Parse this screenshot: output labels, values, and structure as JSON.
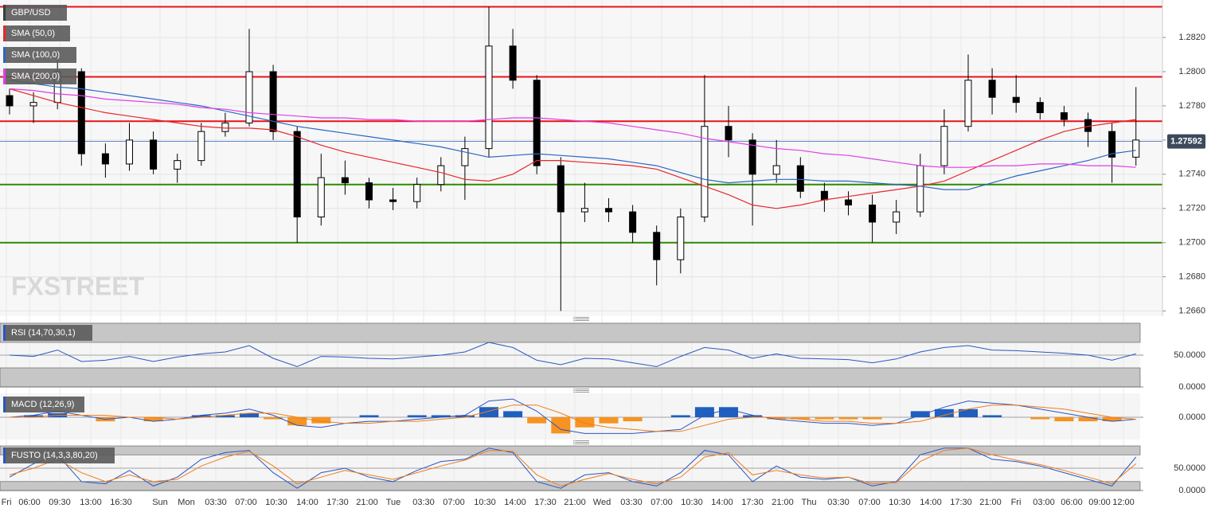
{
  "chart_data": [
    {
      "type": "candlestick",
      "title": "GBP/USD",
      "color": "#3c3c3c",
      "watermark": "FXSTREET",
      "x_labels": [
        "Fri",
        "06:00",
        "09:30",
        "13:00",
        "16:30",
        "Sun",
        "Mon",
        "03:30",
        "07:00",
        "10:30",
        "14:00",
        "17:30",
        "21:00",
        "Tue",
        "03:30",
        "07:00",
        "10:30",
        "14:00",
        "17:30",
        "21:00",
        "Wed",
        "03:30",
        "07:00",
        "10:30",
        "14:00",
        "17:30",
        "21:00",
        "Thu",
        "03:30",
        "07:00",
        "10:30",
        "14:00",
        "17:30",
        "21:00",
        "Fri",
        "03:00",
        "06:00",
        "09:00",
        "12:00"
      ],
      "open": [
        1.2786,
        1.278,
        1.2782,
        1.28,
        1.2752,
        1.2746,
        1.276,
        1.2743,
        1.2748,
        1.2765,
        1.277,
        1.28,
        1.2765,
        1.2715,
        1.2738,
        1.2735,
        1.2725,
        1.2724,
        1.2734,
        1.2745,
        1.2755,
        1.2815,
        1.2795,
        1.2745,
        1.2718,
        1.272,
        1.2718,
        1.2706,
        1.269,
        1.2715,
        1.2768,
        1.276,
        1.274,
        1.2745,
        1.273,
        1.2725,
        1.2722,
        1.2712,
        1.2718,
        1.2745,
        1.2768,
        1.2795,
        1.2785,
        1.2782,
        1.2776,
        1.2772,
        1.2765,
        1.275
      ],
      "high": [
        1.279,
        1.2788,
        1.2808,
        1.2802,
        1.2758,
        1.277,
        1.2765,
        1.2752,
        1.277,
        1.2776,
        1.2825,
        1.2804,
        1.2768,
        1.2752,
        1.2748,
        1.2738,
        1.2732,
        1.2738,
        1.275,
        1.2762,
        1.2838,
        1.2825,
        1.2798,
        1.275,
        1.2735,
        1.2726,
        1.2722,
        1.271,
        1.272,
        1.2798,
        1.278,
        1.2764,
        1.276,
        1.275,
        1.2735,
        1.273,
        1.2728,
        1.2725,
        1.2752,
        1.2778,
        1.281,
        1.2802,
        1.2798,
        1.2785,
        1.278,
        1.2776,
        1.277,
        1.2791
      ],
      "low": [
        1.2775,
        1.277,
        1.2778,
        1.2745,
        1.2738,
        1.2742,
        1.274,
        1.2735,
        1.2745,
        1.2762,
        1.2768,
        1.276,
        1.27,
        1.271,
        1.2728,
        1.272,
        1.2719,
        1.272,
        1.273,
        1.2725,
        1.275,
        1.279,
        1.274,
        1.266,
        1.2712,
        1.2712,
        1.27,
        1.2675,
        1.2682,
        1.2712,
        1.275,
        1.271,
        1.2735,
        1.2726,
        1.2718,
        1.2716,
        1.27,
        1.2705,
        1.2715,
        1.274,
        1.2765,
        1.2775,
        1.2776,
        1.2772,
        1.2768,
        1.2756,
        1.2735,
        1.2745
      ],
      "close": [
        1.278,
        1.2782,
        1.28,
        1.2752,
        1.2746,
        1.276,
        1.2743,
        1.2748,
        1.2765,
        1.277,
        1.28,
        1.2765,
        1.2715,
        1.2738,
        1.2735,
        1.2725,
        1.2724,
        1.2734,
        1.2745,
        1.2755,
        1.2815,
        1.2795,
        1.2745,
        1.2718,
        1.272,
        1.2718,
        1.2706,
        1.269,
        1.2715,
        1.2768,
        1.276,
        1.274,
        1.2745,
        1.273,
        1.2725,
        1.2722,
        1.2712,
        1.2718,
        1.2745,
        1.2768,
        1.2795,
        1.2785,
        1.2782,
        1.2776,
        1.2772,
        1.2765,
        1.275,
        1.276
      ],
      "overlays": [
        {
          "name": "SMA (50,0)",
          "color": "#e8272b",
          "values": [
            1.279,
            1.2786,
            1.2782,
            1.2779,
            1.2776,
            1.2774,
            1.2772,
            1.277,
            1.2768,
            1.2767,
            1.2767,
            1.2766,
            1.2762,
            1.2757,
            1.2753,
            1.275,
            1.2747,
            1.2744,
            1.2741,
            1.2737,
            1.2736,
            1.274,
            1.2748,
            1.2748,
            1.2747,
            1.2746,
            1.2745,
            1.2743,
            1.2738,
            1.2733,
            1.2728,
            1.2722,
            1.272,
            1.2722,
            1.2725,
            1.2727,
            1.2729,
            1.2731,
            1.2733,
            1.2736,
            1.2742,
            1.2748,
            1.2754,
            1.276,
            1.2765,
            1.2768,
            1.277,
            1.2772
          ]
        },
        {
          "name": "SMA (100,0)",
          "color": "#2b67c4",
          "values": [
            1.2795,
            1.2793,
            1.2791,
            1.279,
            1.2788,
            1.2786,
            1.2784,
            1.2782,
            1.278,
            1.2777,
            1.2774,
            1.2771,
            1.2768,
            1.2766,
            1.2764,
            1.2762,
            1.276,
            1.2758,
            1.2756,
            1.2753,
            1.275,
            1.2751,
            1.2752,
            1.2751,
            1.275,
            1.2749,
            1.2747,
            1.2745,
            1.2741,
            1.2737,
            1.2735,
            1.2736,
            1.2737,
            1.2737,
            1.2736,
            1.2736,
            1.2735,
            1.2734,
            1.2733,
            1.2731,
            1.2731,
            1.2735,
            1.2739,
            1.2742,
            1.2745,
            1.2748,
            1.2752,
            1.2754
          ]
        },
        {
          "name": "SMA (200,0)",
          "color": "#e23de8",
          "values": [
            1.279,
            1.2789,
            1.2787,
            1.2786,
            1.2784,
            1.2783,
            1.2782,
            1.2781,
            1.2779,
            1.2778,
            1.2776,
            1.2775,
            1.2774,
            1.2773,
            1.2773,
            1.2772,
            1.2772,
            1.2771,
            1.2771,
            1.2771,
            1.2772,
            1.2773,
            1.2773,
            1.2772,
            1.2771,
            1.277,
            1.2768,
            1.2766,
            1.2764,
            1.2761,
            1.2759,
            1.2757,
            1.2755,
            1.2754,
            1.2752,
            1.2751,
            1.2749,
            1.2747,
            1.2745,
            1.2744,
            1.2744,
            1.2745,
            1.2745,
            1.2746,
            1.2746,
            1.2745,
            1.2745,
            1.2744
          ]
        }
      ],
      "levels": [
        {
          "value": 1.2838,
          "color": "#e8131b"
        },
        {
          "value": 1.2797,
          "color": "#e8131b"
        },
        {
          "value": 1.2771,
          "color": "#e8131b"
        },
        {
          "value": 1.2734,
          "color": "#2e8b00"
        },
        {
          "value": 1.27,
          "color": "#2e8b00"
        }
      ],
      "last_price": 1.27592,
      "ylim": [
        1.2657,
        1.2841
      ],
      "yticks": [
        {
          "value": 1.266,
          "label": "1.2660"
        },
        {
          "value": 1.268,
          "label": "1.2680"
        },
        {
          "value": 1.27,
          "label": "1.2700"
        },
        {
          "value": 1.272,
          "label": "1.2720"
        },
        {
          "value": 1.274,
          "label": "1.2740"
        },
        {
          "value": 1.276,
          "label": "1.2760"
        },
        {
          "value": 1.278,
          "label": "1.2780"
        },
        {
          "value": 1.28,
          "label": "1.2800"
        },
        {
          "value": 1.282,
          "label": "1.2820"
        }
      ],
      "grid": true
    },
    {
      "type": "line",
      "title": "RSI (14,70,30,1)",
      "zones": [
        [
          70,
          100
        ],
        [
          0,
          30
        ]
      ],
      "ylim": [
        0,
        100
      ],
      "yticks": [
        {
          "value": 50,
          "label": "50.0000"
        },
        {
          "value": 0,
          "label": "0.0000"
        }
      ],
      "series": [
        {
          "color": "#2b55c4",
          "values": [
            50,
            48,
            58,
            40,
            42,
            48,
            40,
            47,
            52,
            55,
            65,
            45,
            32,
            48,
            47,
            45,
            44,
            47,
            50,
            55,
            70,
            62,
            42,
            35,
            45,
            44,
            38,
            32,
            48,
            62,
            58,
            45,
            52,
            45,
            44,
            43,
            38,
            44,
            55,
            62,
            65,
            58,
            57,
            55,
            53,
            50,
            42,
            52
          ]
        }
      ]
    },
    {
      "type": "line",
      "title": "MACD (12,26,9)",
      "ylim": [
        -0.0011,
        0.0011
      ],
      "yticks": [
        {
          "value": 0,
          "label": "0.0000"
        }
      ],
      "histogram": {
        "up_color": "#1f5fbf",
        "down_color": "#f7931e",
        "values": [
          0,
          0.0001,
          0.0002,
          0,
          -0.0002,
          0,
          -0.0002,
          0,
          0.0001,
          0.0001,
          0.0002,
          -0.0001,
          -0.0004,
          -0.0003,
          0,
          0.0001,
          0,
          0.0001,
          0.0001,
          0.0001,
          0.0005,
          0.0003,
          -0.0003,
          -0.0008,
          -0.0005,
          -0.0003,
          -0.0002,
          0,
          0.0001,
          0.0005,
          0.0005,
          0.0001,
          -0.0001,
          -0.0001,
          -0.0001,
          -0.0001,
          -0.0001,
          0,
          0.0003,
          0.0004,
          0.0004,
          0.0001,
          0,
          -0.0001,
          -0.0002,
          -0.0002,
          -0.0002,
          0
        ]
      },
      "series": [
        {
          "color": "#2b55c4",
          "values": [
            0,
            0.0001,
            0.0003,
            0.0001,
            -0.0001,
            0,
            -0.0002,
            -0.0001,
            0.0001,
            0.0002,
            0.0004,
            0.0001,
            -0.0004,
            -0.0005,
            -0.0003,
            -0.0002,
            -0.0002,
            -0.0001,
            0,
            0.0001,
            0.0008,
            0.0009,
            0.0003,
            -0.0006,
            -0.0008,
            -0.0008,
            -0.0008,
            -0.0007,
            -0.0006,
            0.0001,
            0.0004,
            0.0001,
            -0.0001,
            -0.0002,
            -0.0003,
            -0.0003,
            -0.0004,
            -0.0003,
            0.0001,
            0.0005,
            0.0008,
            0.0007,
            0.0006,
            0.0004,
            0.0002,
            0,
            -0.0002,
            -0.0001
          ]
        },
        {
          "color": "#f07d1a",
          "values": [
            0,
            0,
            0.0001,
            0.0001,
            0.0001,
            0,
            0,
            -0.0001,
            0,
            0.0001,
            0.0002,
            0.0002,
            0,
            -0.0002,
            -0.0003,
            -0.0003,
            -0.0002,
            -0.0002,
            -0.0001,
            0,
            0.0003,
            0.0006,
            0.0006,
            0.0002,
            -0.0003,
            -0.0005,
            -0.0006,
            -0.0007,
            -0.0007,
            -0.0004,
            -0.0001,
            0,
            0,
            -0.0001,
            -0.0002,
            -0.0002,
            -0.0003,
            -0.0003,
            -0.0002,
            0.0001,
            0.0004,
            0.0006,
            0.0006,
            0.0005,
            0.0004,
            0.0002,
            0,
            -0.0001
          ]
        }
      ]
    },
    {
      "type": "line",
      "title": "FUSTO (14,3,3,80,20)",
      "zones": [
        [
          80,
          100
        ],
        [
          0,
          20
        ]
      ],
      "ylim": [
        0,
        100
      ],
      "yticks": [
        {
          "value": 50,
          "label": "50.0000"
        },
        {
          "value": 0,
          "label": "0.0000"
        }
      ],
      "series": [
        {
          "color": "#2b55c4",
          "values": [
            30,
            60,
            80,
            20,
            15,
            45,
            10,
            30,
            70,
            85,
            90,
            40,
            5,
            40,
            50,
            30,
            20,
            45,
            65,
            70,
            95,
            85,
            20,
            5,
            35,
            40,
            20,
            10,
            40,
            90,
            80,
            20,
            55,
            30,
            25,
            30,
            10,
            20,
            80,
            95,
            95,
            70,
            65,
            55,
            40,
            25,
            10,
            75
          ]
        },
        {
          "color": "#f07d1a",
          "values": [
            35,
            50,
            70,
            40,
            20,
            35,
            20,
            25,
            55,
            75,
            88,
            55,
            15,
            30,
            45,
            35,
            25,
            40,
            55,
            68,
            90,
            88,
            35,
            10,
            25,
            38,
            25,
            15,
            30,
            75,
            85,
            35,
            45,
            35,
            28,
            30,
            15,
            18,
            65,
            90,
            95,
            80,
            68,
            58,
            45,
            30,
            15,
            60
          ]
        }
      ]
    }
  ]
}
